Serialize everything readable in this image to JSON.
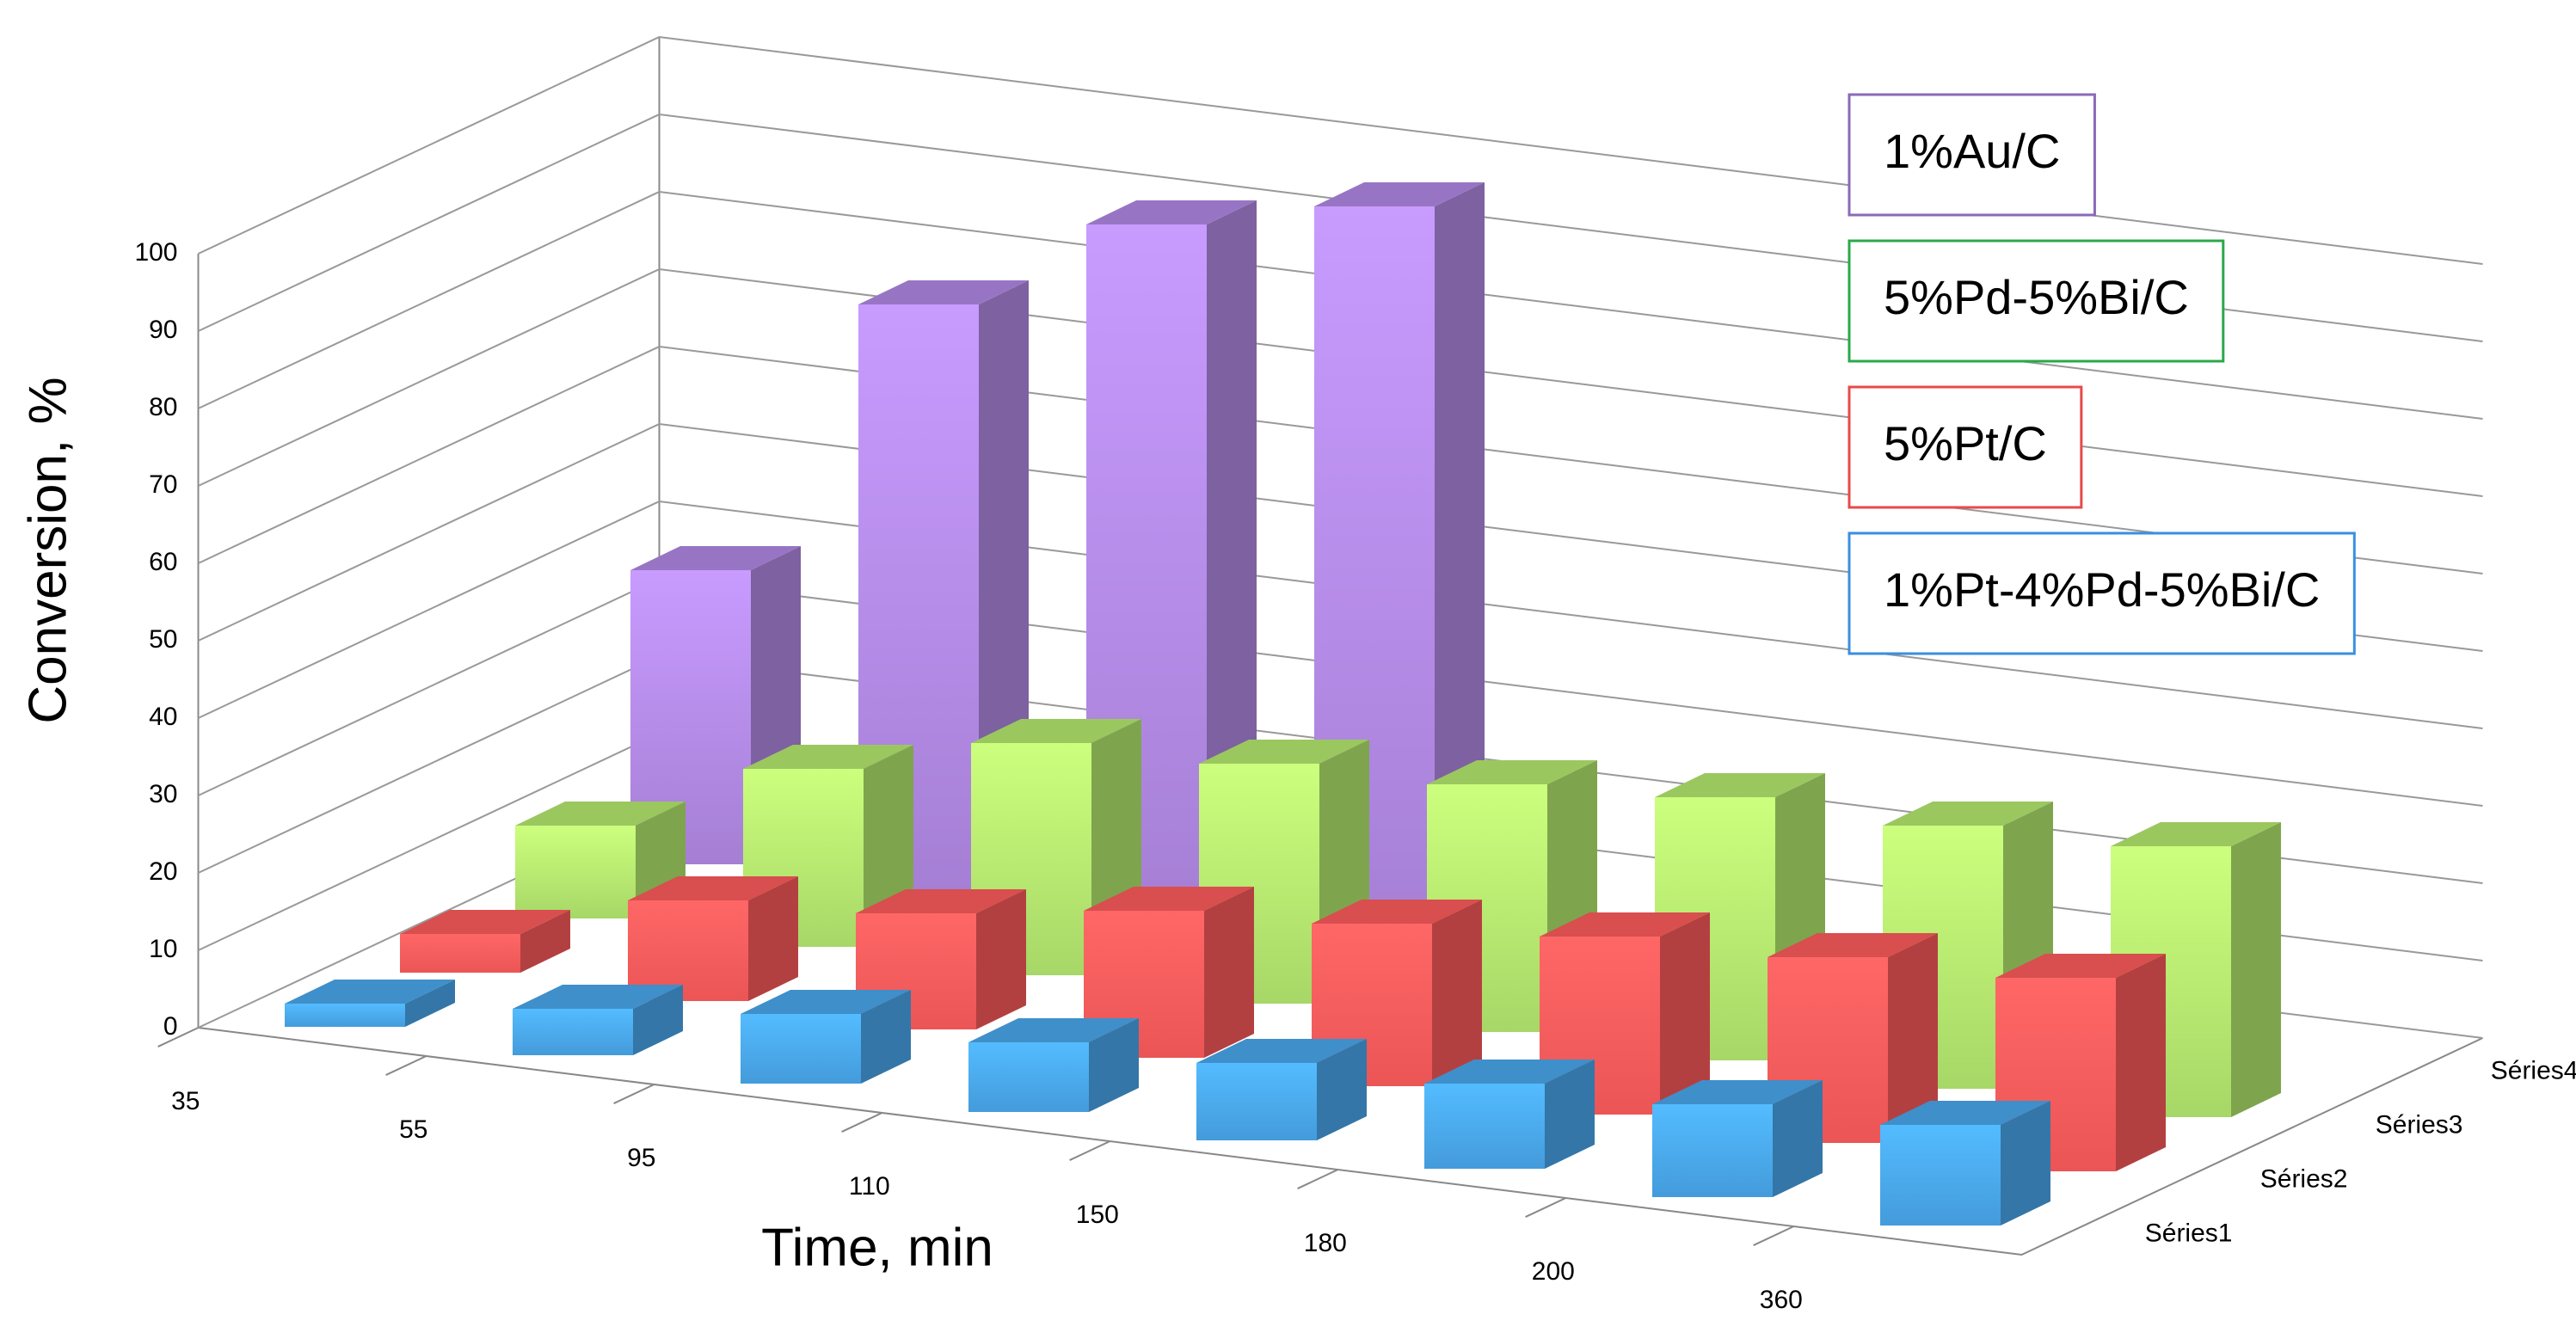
{
  "chart_data": {
    "type": "bar3d",
    "xlabel": "Time, min",
    "ylabel": "Conversion, %",
    "categories": [
      "35",
      "55",
      "95",
      "110",
      "150",
      "180",
      "200",
      "360"
    ],
    "depth_labels": [
      "Séries1",
      "Séries2",
      "Séries3",
      "Séries4"
    ],
    "series": [
      {
        "name": "1%Pt-4%Pd-5%Bi/C",
        "color": "#4aa8ee",
        "values": [
          3,
          6,
          9,
          9,
          10,
          11,
          12,
          13
        ]
      },
      {
        "name": "5%Pt/C",
        "color": "#ff5c5c",
        "values": [
          5,
          13,
          15,
          19,
          21,
          23,
          24,
          25
        ]
      },
      {
        "name": "5%Pd-5%Bi/C",
        "color": "#b6ea70",
        "values": [
          12,
          23,
          30,
          31,
          32,
          34,
          34,
          35
        ]
      },
      {
        "name": "1%Au/C",
        "color": "#b38ae6",
        "values": [
          38,
          76,
          90,
          96,
          null,
          null,
          null,
          null
        ]
      }
    ],
    "legend_borders": [
      "#3a8ee0",
      "#e84a4a",
      "#2aa84a",
      "#8a6ab8"
    ],
    "ylim": [
      0,
      100
    ],
    "yticks": [
      0,
      10,
      20,
      30,
      40,
      50,
      60,
      70,
      80,
      90,
      100
    ],
    "grid": true
  }
}
